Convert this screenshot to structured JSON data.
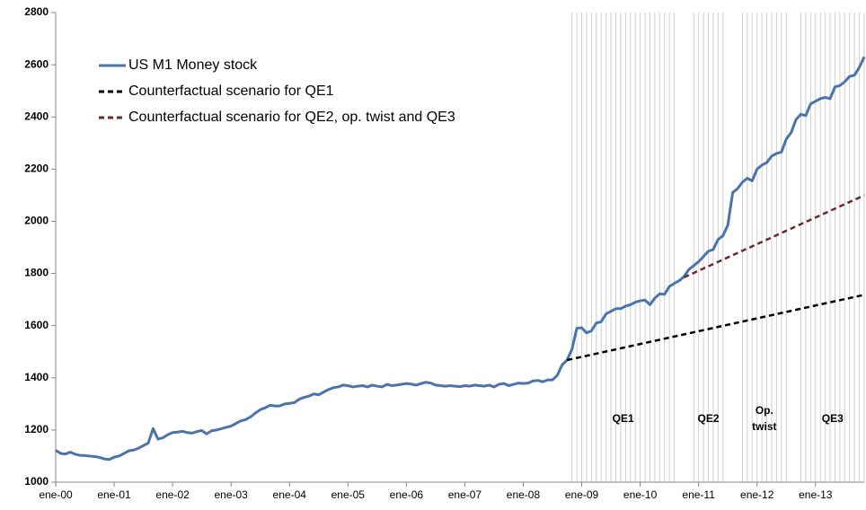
{
  "chart_data": {
    "type": "line",
    "categories": [
      "ene-00",
      null,
      null,
      null,
      null,
      null,
      null,
      null,
      null,
      null,
      null,
      null,
      "ene-01",
      null,
      null,
      null,
      null,
      null,
      null,
      null,
      null,
      null,
      null,
      null,
      "ene-02",
      null,
      null,
      null,
      null,
      null,
      null,
      null,
      null,
      null,
      null,
      null,
      "ene-03",
      null,
      null,
      null,
      null,
      null,
      null,
      null,
      null,
      null,
      null,
      null,
      "ene-04",
      null,
      null,
      null,
      null,
      null,
      null,
      null,
      null,
      null,
      null,
      null,
      "ene-05",
      null,
      null,
      null,
      null,
      null,
      null,
      null,
      null,
      null,
      null,
      null,
      "ene-06",
      null,
      null,
      null,
      null,
      null,
      null,
      null,
      null,
      null,
      null,
      null,
      "ene-07",
      null,
      null,
      null,
      null,
      null,
      null,
      null,
      null,
      null,
      null,
      null,
      "ene-08",
      null,
      null,
      null,
      null,
      null,
      null,
      null,
      null,
      null,
      null,
      null,
      "ene-09",
      null,
      null,
      null,
      null,
      null,
      null,
      null,
      null,
      null,
      null,
      null,
      "ene-10",
      null,
      null,
      null,
      null,
      null,
      null,
      null,
      null,
      null,
      null,
      null,
      "ene-11",
      null,
      null,
      null,
      null,
      null,
      null,
      null,
      null,
      null,
      null,
      null,
      "ene-12",
      null,
      null,
      null,
      null,
      null,
      null,
      null,
      null,
      null,
      null,
      null,
      "ene-13",
      null,
      null,
      null,
      null,
      null,
      null,
      null,
      null,
      null,
      null
    ],
    "series": [
      {
        "name": "US M1 Money stock",
        "color": "#4a74aa",
        "dash": false,
        "values": [
          1122,
          1110,
          1108,
          1115,
          1107,
          1103,
          1102,
          1100,
          1098,
          1095,
          1089,
          1087,
          1096,
          1100,
          1110,
          1120,
          1123,
          1130,
          1140,
          1150,
          1205,
          1165,
          1170,
          1182,
          1190,
          1192,
          1195,
          1190,
          1188,
          1194,
          1198,
          1185,
          1197,
          1200,
          1205,
          1210,
          1215,
          1225,
          1235,
          1240,
          1250,
          1265,
          1278,
          1285,
          1295,
          1292,
          1292,
          1300,
          1302,
          1305,
          1318,
          1325,
          1330,
          1338,
          1335,
          1345,
          1355,
          1362,
          1365,
          1372,
          1370,
          1365,
          1368,
          1370,
          1365,
          1372,
          1368,
          1365,
          1375,
          1370,
          1372,
          1375,
          1378,
          1376,
          1372,
          1378,
          1383,
          1380,
          1372,
          1370,
          1368,
          1370,
          1368,
          1366,
          1370,
          1368,
          1372,
          1370,
          1368,
          1372,
          1365,
          1375,
          1378,
          1370,
          1375,
          1380,
          1378,
          1380,
          1388,
          1390,
          1385,
          1392,
          1392,
          1410,
          1450,
          1468,
          1510,
          1590,
          1592,
          1572,
          1580,
          1610,
          1615,
          1645,
          1655,
          1665,
          1665,
          1675,
          1680,
          1690,
          1695,
          1698,
          1680,
          1705,
          1722,
          1720,
          1750,
          1762,
          1772,
          1788,
          1815,
          1830,
          1845,
          1865,
          1885,
          1892,
          1930,
          1945,
          1985,
          2110,
          2125,
          2150,
          2165,
          2155,
          2200,
          2215,
          2225,
          2250,
          2260,
          2265,
          2315,
          2340,
          2390,
          2410,
          2405,
          2450,
          2460,
          2470,
          2475,
          2470,
          2515,
          2520,
          2535,
          2555,
          2560,
          2590,
          2630
        ]
      },
      {
        "name": "Counterfactual scenario for QE1",
        "color": "#000000",
        "dash": true,
        "values": [
          null,
          null,
          null,
          null,
          null,
          null,
          null,
          null,
          null,
          null,
          null,
          null,
          null,
          null,
          null,
          null,
          null,
          null,
          null,
          null,
          null,
          null,
          null,
          null,
          null,
          null,
          null,
          null,
          null,
          null,
          null,
          null,
          null,
          null,
          null,
          null,
          null,
          null,
          null,
          null,
          null,
          null,
          null,
          null,
          null,
          null,
          null,
          null,
          null,
          null,
          null,
          null,
          null,
          null,
          null,
          null,
          null,
          null,
          null,
          null,
          null,
          null,
          null,
          null,
          null,
          null,
          null,
          null,
          null,
          null,
          null,
          null,
          null,
          null,
          null,
          null,
          null,
          null,
          null,
          null,
          null,
          null,
          null,
          null,
          null,
          null,
          null,
          null,
          null,
          null,
          null,
          null,
          null,
          null,
          null,
          null,
          null,
          null,
          null,
          null,
          null,
          null,
          null,
          null,
          null,
          1468.0,
          1472.1,
          1476.2,
          1480.3,
          1484.4,
          1488.5,
          1492.6,
          1496.7,
          1500.8,
          1504.9,
          1509.0,
          1513.1,
          1517.2,
          1521.3,
          1525.4,
          1529.5,
          1533.6,
          1537.7,
          1541.8,
          1545.9,
          1550.0,
          1554.1,
          1558.2,
          1562.3,
          1566.4,
          1570.5,
          1574.6,
          1578.7,
          1582.8,
          1586.9,
          1591.0,
          1595.1,
          1599.2,
          1603.3,
          1607.4,
          1611.5,
          1615.6,
          1619.7,
          1623.8,
          1627.9,
          1632.0,
          1636.1,
          1640.2,
          1644.3,
          1648.4,
          1652.5,
          1656.6,
          1660.7,
          1664.8,
          1668.9,
          1673.0,
          1677.1,
          1681.2,
          1685.3,
          1689.4,
          1693.5,
          1697.6,
          1701.7,
          1705.8,
          1709.9,
          1714.0,
          1718.1
        ]
      },
      {
        "name": "Counterfactual scenario for QE2, op. twist and QE3",
        "color": "#6b2a2a",
        "dash": true,
        "values": [
          null,
          null,
          null,
          null,
          null,
          null,
          null,
          null,
          null,
          null,
          null,
          null,
          null,
          null,
          null,
          null,
          null,
          null,
          null,
          null,
          null,
          null,
          null,
          null,
          null,
          null,
          null,
          null,
          null,
          null,
          null,
          null,
          null,
          null,
          null,
          null,
          null,
          null,
          null,
          null,
          null,
          null,
          null,
          null,
          null,
          null,
          null,
          null,
          null,
          null,
          null,
          null,
          null,
          null,
          null,
          null,
          null,
          null,
          null,
          null,
          null,
          null,
          null,
          null,
          null,
          null,
          null,
          null,
          null,
          null,
          null,
          null,
          null,
          null,
          null,
          null,
          null,
          null,
          null,
          null,
          null,
          null,
          null,
          null,
          null,
          null,
          null,
          null,
          null,
          null,
          null,
          null,
          null,
          null,
          null,
          null,
          null,
          null,
          null,
          null,
          null,
          null,
          null,
          null,
          null,
          null,
          null,
          null,
          null,
          null,
          null,
          null,
          null,
          null,
          null,
          null,
          null,
          null,
          null,
          null,
          null,
          null,
          null,
          null,
          null,
          null,
          null,
          null,
          null,
          1785,
          1793.5,
          1802,
          1810.5,
          1819,
          1827.5,
          1836,
          1844.5,
          1853,
          1861.5,
          1870,
          1878.5,
          1887,
          1895.5,
          1904,
          1912.5,
          1921,
          1929.5,
          1938,
          1946.5,
          1955,
          1963.5,
          1972,
          1980.5,
          1989,
          1997.5,
          2006,
          2014.5,
          2023,
          2031.5,
          2040,
          2048.5,
          2057,
          2065.5,
          2074,
          2082.5,
          2091,
          2099.5
        ]
      }
    ],
    "periods": [
      {
        "label": [
          "QE1"
        ],
        "start": 106,
        "end": 127
      },
      {
        "label": [
          "QE2"
        ],
        "start": 131,
        "end": 137
      },
      {
        "label": [
          "Op.",
          "twist"
        ],
        "start": 141,
        "end": 150
      },
      {
        "label": [
          "QE3"
        ],
        "start": 153,
        "end": 166
      }
    ],
    "ylim": [
      1000,
      2800
    ],
    "yticks": [
      1000,
      1200,
      1400,
      1600,
      1800,
      2000,
      2200,
      2400,
      2600,
      2800
    ],
    "grid": false,
    "legend": "top-left"
  }
}
